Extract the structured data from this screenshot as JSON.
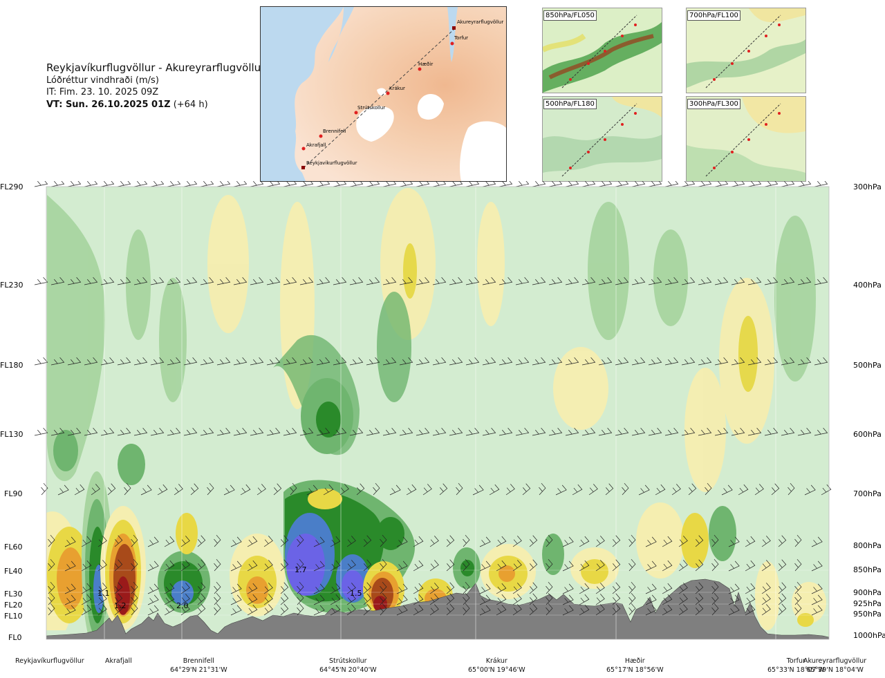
{
  "header": {
    "route_title": "Reykjavíkurflugvöllur - Akureyrarflugvöllur",
    "quantity": "Lóðréttur vindhraði (m/s)",
    "issue_time": "IT: Fim. 23. 10. 2025 09Z",
    "valid_time": "VT: Sun. 26.10.2025 01Z",
    "lead_time": " (+64 h)"
  },
  "route_map": {
    "waypoints": [
      "Reykjavíkurflugvöllur",
      "Akrafjall",
      "Brennifell",
      "Strútskollur",
      "Krákur",
      "Hæðir",
      "Torfur",
      "Akureyrarflugvöllur"
    ]
  },
  "insets": [
    {
      "label": "850hPa/FL050"
    },
    {
      "label": "700hPa/FL100"
    },
    {
      "label": "500hPa/FL180"
    },
    {
      "label": "300hPa/FL300"
    }
  ],
  "colors": {
    "strong_down": "#6b63e6",
    "mid_down": "#4a7ec8",
    "green_dark": "#2a8a2a",
    "green_mid": "#6fb56f",
    "green_light": "#a8d5a0",
    "background": "#d3ecd0",
    "yellow_light": "#f5eeb0",
    "yellow": "#e8d845",
    "orange": "#e8a030",
    "brown": "#a84a1a",
    "dark_red": "#9a1a1a",
    "terrain": "#7f7f7f"
  },
  "chart_data": {
    "type": "heatmap",
    "title": "Lóðréttur vindhraði (m/s)",
    "y_levels": [
      {
        "fl": "FL290",
        "hpa": "300hPa"
      },
      {
        "fl": "FL230",
        "hpa": "400hPa"
      },
      {
        "fl": "FL180",
        "hpa": "500hPa"
      },
      {
        "fl": "FL130",
        "hpa": "600hPa"
      },
      {
        "fl": "FL90",
        "hpa": "700hPa"
      },
      {
        "fl": "FL60",
        "hpa": "800hPa"
      },
      {
        "fl": "FL40",
        "hpa": "850hPa"
      },
      {
        "fl": "FL30",
        "hpa": "900hPa"
      },
      {
        "fl": "FL20",
        "hpa": "925hPa"
      },
      {
        "fl": "FL10",
        "hpa": "950hPa"
      },
      {
        "fl": "FL0",
        "hpa": "1000hPa"
      }
    ],
    "waypoints": [
      {
        "name": "Reykjavíkurflugvöllur",
        "coord": ""
      },
      {
        "name": "Akrafjall",
        "coord": ""
      },
      {
        "name": "Brennifell",
        "coord": "64°29'N 21°31'W"
      },
      {
        "name": "Strútskollur",
        "coord": "64°45'N 20°40'W"
      },
      {
        "name": "Krákur",
        "coord": "65°00'N 19°46'W"
      },
      {
        "name": "Hæðir",
        "coord": "65°17'N 18°56'W"
      },
      {
        "name": "Torfur",
        "coord": "65°33'N 18°07'W"
      },
      {
        "name": "Akureyrarflugvöllur",
        "coord": "65°39'N 18°04'W"
      }
    ],
    "annotations": [
      "1.1",
      "1.2",
      "2.0",
      "1.7",
      "1.5"
    ]
  }
}
